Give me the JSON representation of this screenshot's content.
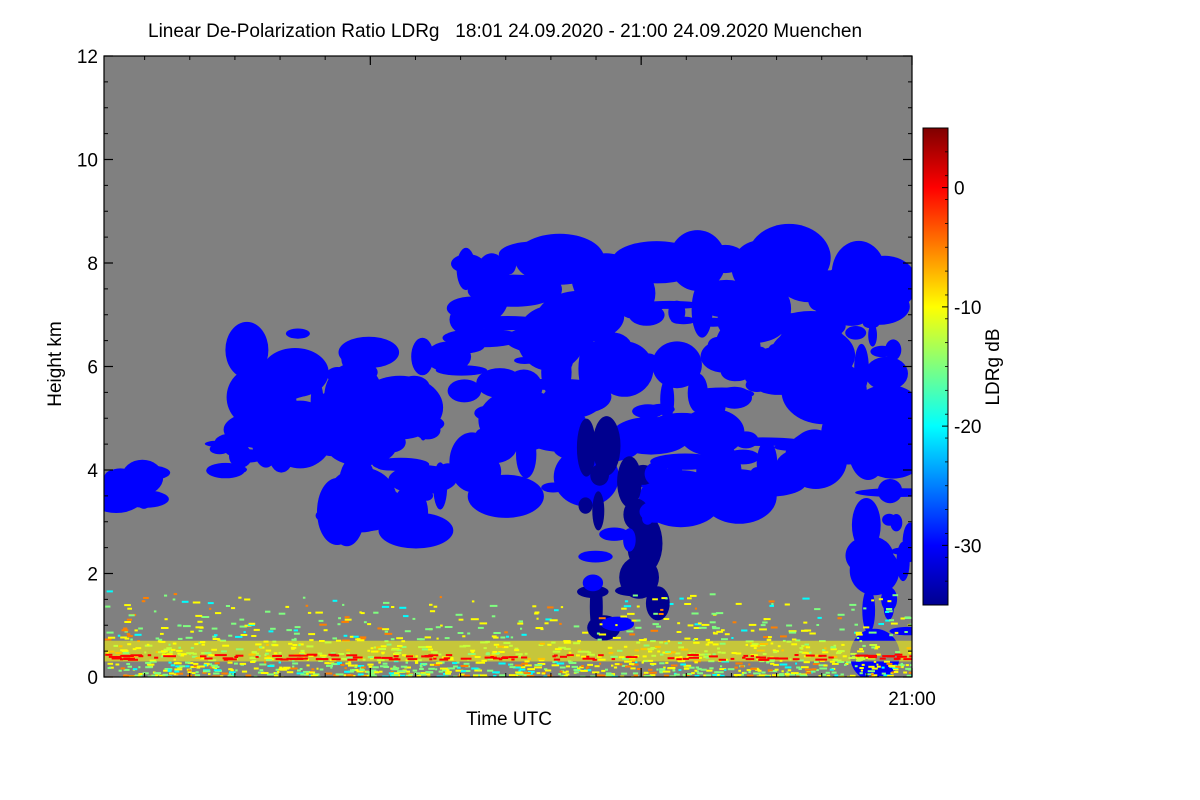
{
  "chart_data": {
    "type": "heatmap",
    "title": "Linear De-Polarization Ratio LDRg   18:01 24.09.2020 - 21:00 24.09.2020 Muenchen",
    "xlabel": "Time UTC",
    "ylabel": "Height km",
    "colorbar_label": "LDRg dB",
    "xlim": [
      "18:01",
      "21:00"
    ],
    "ylim": [
      0,
      12
    ],
    "x_ticks": [
      "19:00",
      "20:00",
      "21:00"
    ],
    "y_ticks": [
      0,
      2,
      4,
      6,
      8,
      10,
      12
    ],
    "colorbar_range": [
      -35,
      5
    ],
    "colorbar_ticks": [
      0,
      -10,
      -20,
      -30
    ],
    "background_color": "#808080",
    "colormap": [
      "#00008f",
      "#0000ff",
      "#007fff",
      "#00ffff",
      "#7fff7f",
      "#ffff00",
      "#ff7f00",
      "#ff0000",
      "#7f0000"
    ],
    "features": [
      {
        "name": "cloud_early_low",
        "t_start": "18:01",
        "t_end": "18:14",
        "z_bottom": 3.3,
        "z_top": 4.1,
        "ldr_db": -32
      },
      {
        "name": "cloud_1830",
        "t_start": "18:24",
        "t_end": "18:33",
        "z_bottom": 3.9,
        "z_top": 4.6,
        "ldr_db": -31
      },
      {
        "name": "cloud_band_a",
        "t_start": "18:31",
        "t_end": "18:50",
        "z_bottom": 4.2,
        "z_top": 7.0,
        "ldr_db": -30
      },
      {
        "name": "cloud_band_b",
        "t_start": "18:50",
        "t_end": "19:18",
        "z_bottom": 2.8,
        "z_top": 6.3,
        "ldr_db": -31
      },
      {
        "name": "cloud_main",
        "t_start": "19:20",
        "t_end": "20:58",
        "z_bottom": 3.4,
        "z_top": 8.2,
        "ldr_db": -30
      },
      {
        "name": "fallstreak_1",
        "t_start": "19:47",
        "t_end": "19:55",
        "z_bottom": 0.8,
        "z_top": 4.8,
        "ldr_db": -33
      },
      {
        "name": "fallstreak_2",
        "t_start": "19:56",
        "t_end": "20:04",
        "z_bottom": 0.7,
        "z_top": 4.2,
        "ldr_db": -33
      },
      {
        "name": "fallstreak_3",
        "t_start": "20:49",
        "t_end": "21:00",
        "z_bottom": 0.3,
        "z_top": 3.3,
        "ldr_db": -31
      },
      {
        "name": "boundary_layer_aerosol",
        "t_start": "18:01",
        "t_end": "21:00",
        "z_bottom": 0.0,
        "z_top": 1.8,
        "ldr_db": -12
      }
    ]
  }
}
